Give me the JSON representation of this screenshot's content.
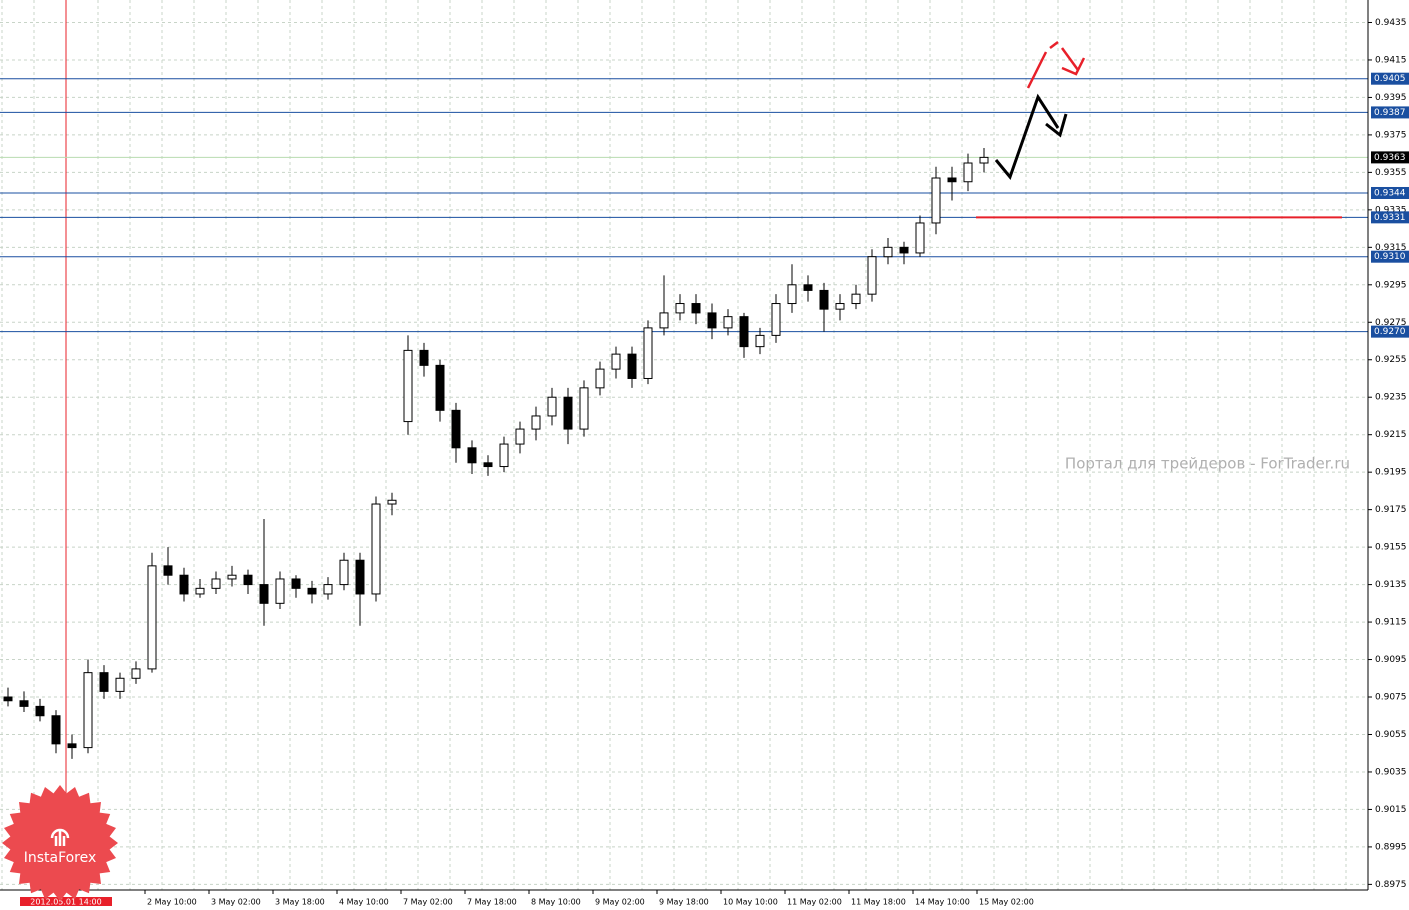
{
  "chart_data": {
    "type": "candlestick",
    "watermark": "Портал для трейдеров - ForTrader.ru",
    "logo_text": "InstaForex",
    "cursor_time": "2012.05.01 14:00",
    "xtick_labels": [
      "2 May 10:00",
      "3 May 02:00",
      "3 May 18:00",
      "4 May 10:00",
      "7 May 02:00",
      "7 May 18:00",
      "8 May 10:00",
      "9 May 02:00",
      "9 May 18:00",
      "10 May 10:00",
      "11 May 02:00",
      "11 May 18:00",
      "14 May 10:00",
      "15 May 02:00"
    ],
    "ylim": [
      0.8972,
      0.9447
    ],
    "yticks": [
      0.9435,
      0.9415,
      0.9395,
      0.9375,
      0.9355,
      0.9335,
      0.9315,
      0.9295,
      0.9275,
      0.9255,
      0.9235,
      0.9215,
      0.9195,
      0.9175,
      0.9155,
      0.9135,
      0.9115,
      0.9095,
      0.9075,
      0.9055,
      0.9035,
      0.9015,
      0.8995,
      0.8975
    ],
    "grid": true,
    "levels": [
      0.9405,
      0.9387,
      0.9344,
      0.9331,
      {
        "value": 0.931,
        "label": "0.9310"
      },
      {
        "value": 0.927,
        "label": "0.9270"
      }
    ],
    "level_color": "#1a4fa0",
    "current_price": 0.9363,
    "target_line": 0.9331,
    "target_color": "#e8202a",
    "open": [
      0.9075,
      0.9073,
      0.907,
      0.9065,
      0.905,
      0.9048,
      0.9088,
      0.9078,
      0.9085,
      0.909,
      0.9145,
      0.914,
      0.913,
      0.9133,
      0.9138,
      0.914,
      0.9135,
      0.9125,
      0.9138,
      0.9133,
      0.913,
      0.9135,
      0.9148,
      0.913,
      0.9178,
      0.9222,
      0.926,
      0.9252,
      0.9228,
      0.9208,
      0.92,
      0.9198,
      0.921,
      0.9218,
      0.9225,
      0.9235,
      0.9218,
      0.924,
      0.925,
      0.9258,
      0.9245,
      0.9272,
      0.928,
      0.9285,
      0.928,
      0.9272,
      0.9278,
      0.9262,
      0.9268,
      0.9285,
      0.9295,
      0.9292,
      0.9282,
      0.9285,
      0.929,
      0.931,
      0.9315,
      0.9312,
      0.9328,
      0.9352,
      0.935,
      0.936
    ],
    "high": [
      0.908,
      0.9078,
      0.9074,
      0.9068,
      0.9055,
      0.9095,
      0.9092,
      0.9088,
      0.9094,
      0.9152,
      0.9155,
      0.9144,
      0.9138,
      0.9142,
      0.9145,
      0.9143,
      0.917,
      0.9142,
      0.914,
      0.9137,
      0.9139,
      0.9152,
      0.9152,
      0.9182,
      0.9184,
      0.9268,
      0.9264,
      0.9255,
      0.9232,
      0.9212,
      0.9204,
      0.9214,
      0.9222,
      0.923,
      0.924,
      0.924,
      0.9244,
      0.9254,
      0.9262,
      0.9262,
      0.9276,
      0.93,
      0.929,
      0.929,
      0.9285,
      0.9282,
      0.928,
      0.9272,
      0.929,
      0.9306,
      0.93,
      0.9296,
      0.929,
      0.9295,
      0.9314,
      0.932,
      0.9318,
      0.9332,
      0.9358,
      0.9358,
      0.9365,
      0.9368
    ],
    "low": [
      0.907,
      0.9067,
      0.9062,
      0.9045,
      0.9042,
      0.9045,
      0.9074,
      0.9074,
      0.9082,
      0.9088,
      0.9135,
      0.9126,
      0.9128,
      0.913,
      0.9134,
      0.913,
      0.9113,
      0.9122,
      0.9128,
      0.9125,
      0.9127,
      0.9132,
      0.9113,
      0.9126,
      0.9172,
      0.9215,
      0.9246,
      0.9222,
      0.92,
      0.9194,
      0.9193,
      0.9195,
      0.9205,
      0.9212,
      0.922,
      0.921,
      0.9214,
      0.9236,
      0.9245,
      0.924,
      0.9242,
      0.9268,
      0.9276,
      0.9274,
      0.9266,
      0.9268,
      0.9256,
      0.9258,
      0.9264,
      0.928,
      0.9286,
      0.927,
      0.9276,
      0.9282,
      0.9286,
      0.9306,
      0.9306,
      0.931,
      0.9322,
      0.934,
      0.9345,
      0.9355
    ],
    "close": [
      0.9073,
      0.907,
      0.9065,
      0.905,
      0.9048,
      0.9088,
      0.9078,
      0.9085,
      0.909,
      0.9145,
      0.914,
      0.913,
      0.9133,
      0.9138,
      0.914,
      0.9135,
      0.9125,
      0.9138,
      0.9133,
      0.913,
      0.9135,
      0.9148,
      0.913,
      0.9178,
      0.918,
      0.926,
      0.9252,
      0.9228,
      0.9208,
      0.92,
      0.9198,
      0.921,
      0.9218,
      0.9225,
      0.9235,
      0.9218,
      0.924,
      0.925,
      0.9258,
      0.9245,
      0.9272,
      0.928,
      0.9285,
      0.928,
      0.9272,
      0.9278,
      0.9262,
      0.9268,
      0.9285,
      0.9295,
      0.9292,
      0.9282,
      0.9285,
      0.929,
      0.931,
      0.9315,
      0.9312,
      0.9328,
      0.9352,
      0.935,
      0.936,
      0.9363
    ]
  }
}
